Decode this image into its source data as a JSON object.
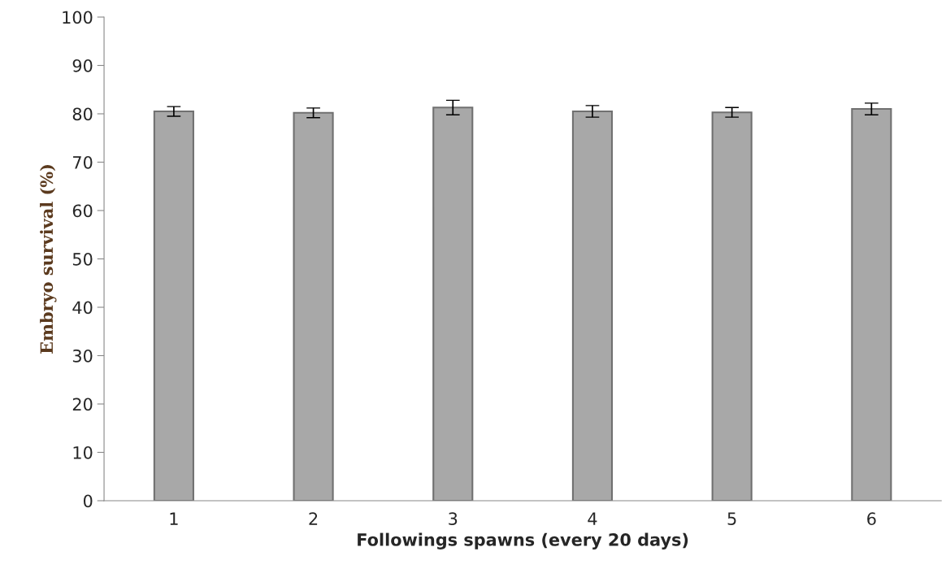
{
  "chart_data": {
    "type": "bar",
    "xlabel": "Followings spawns (every 20 days)",
    "ylabel": "Embryo survival (%)",
    "categories": [
      "1",
      "2",
      "3",
      "4",
      "5",
      "6"
    ],
    "values": [
      80.5,
      80.2,
      81.3,
      80.5,
      80.3,
      81
    ],
    "errors": [
      1,
      1,
      1.5,
      1.2,
      1,
      1.2
    ],
    "color": "#a8a8a8",
    "ylim": [
      0,
      100
    ],
    "yticks": [
      0,
      10,
      20,
      30,
      40,
      50,
      60,
      70,
      80,
      90,
      100
    ],
    "grid": false
  }
}
